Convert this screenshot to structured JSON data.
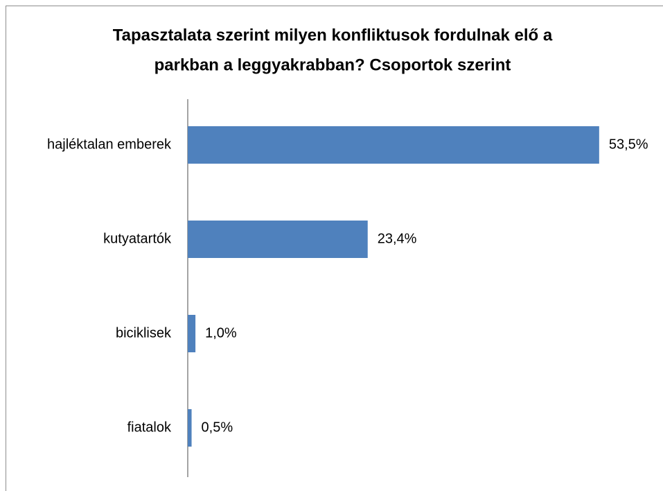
{
  "chart_data": {
    "type": "bar",
    "orientation": "horizontal",
    "title": [
      "Tapasztalata szerint milyen konfliktusok fordulnak elő a",
      "parkban a leggyakrabban? Csoportok szerint"
    ],
    "categories": [
      "hajléktalan emberek",
      "kutyatartók",
      "biciklisek",
      "fiatalok"
    ],
    "values": [
      53.5,
      23.4,
      1.0,
      0.5
    ],
    "value_labels": [
      "53,5%",
      "23,4%",
      "1,0%",
      "0,5%"
    ],
    "color": "#4f81bd"
  }
}
